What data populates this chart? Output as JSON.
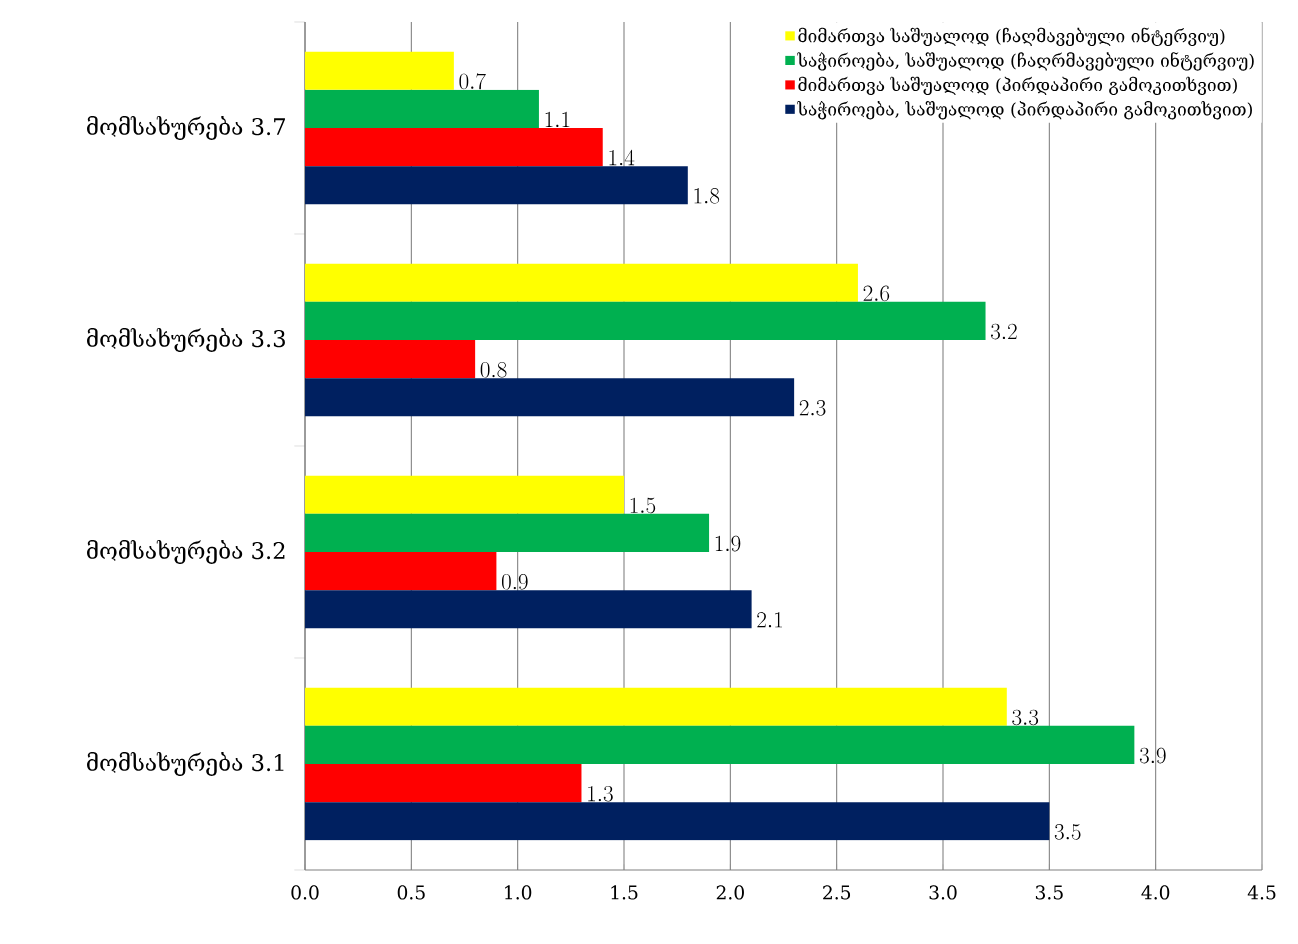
{
  "chart_data": {
    "type": "bar",
    "orientation": "horizontal",
    "categories": [
      "მომსახურება 3.7",
      "მომსახურება 3.3",
      "მომსახურება 3.2",
      "მომსახურება 3.1"
    ],
    "series": [
      {
        "name": "მიმართვა საშუალოდ (ჩაღმავებული ინტერვიუ)",
        "color": "#ffff00",
        "values": [
          0.7,
          2.6,
          1.5,
          3.3
        ]
      },
      {
        "name": "საჭიროება, საშუალოდ (ჩაღრმავებული ინტერვიუ)",
        "color": "#00b050",
        "values": [
          1.1,
          3.2,
          1.9,
          3.9
        ]
      },
      {
        "name": "მიმართვა საშუალოდ (პირდაპირი გამოკითხვით)",
        "color": "#ff0000",
        "values": [
          1.4,
          0.8,
          0.9,
          1.3
        ]
      },
      {
        "name": "საჭიროება, საშუალოდ (პირდაპირი გამოკითხვით)",
        "color": "#002060",
        "values": [
          1.8,
          2.3,
          2.1,
          3.5
        ]
      }
    ],
    "xlim": [
      0,
      4.5
    ],
    "xticks": [
      {
        "value": 0,
        "label": "0.0"
      },
      {
        "value": 0.5,
        "label": "0.5"
      },
      {
        "value": 1,
        "label": "1.0"
      },
      {
        "value": 1.5,
        "label": "1.5"
      },
      {
        "value": 2,
        "label": "2.0"
      },
      {
        "value": 2.5,
        "label": "2.5"
      },
      {
        "value": 3,
        "label": "3.0"
      },
      {
        "value": 3.5,
        "label": "3.5"
      },
      {
        "value": 4,
        "label": "4.0"
      },
      {
        "value": 4.5,
        "label": "4.5"
      }
    ],
    "grid": "x",
    "legend": "top right",
    "data_labels": true
  }
}
